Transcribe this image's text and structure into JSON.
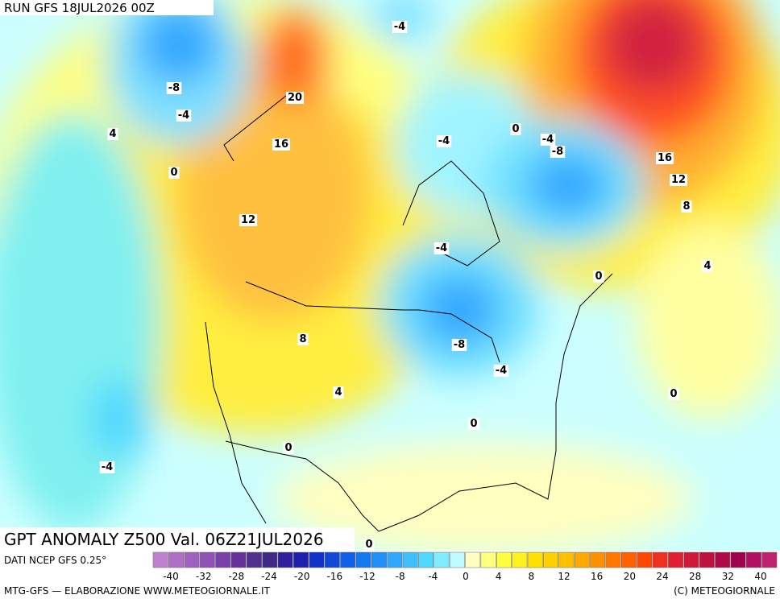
{
  "header": {
    "run": "RUN GFS 18JUL2026 00Z"
  },
  "title": "GPT ANOMALY Z500 Val. 06Z21JUL2026",
  "contour_labels": [
    -4,
    -8,
    -4,
    20,
    4,
    16,
    0,
    0,
    -4,
    -8,
    -4,
    16,
    12,
    8,
    12,
    -4,
    4,
    0,
    8,
    -8,
    -4,
    4,
    0,
    0,
    0,
    -4,
    0
  ],
  "legend": {
    "source": "DATI NCEP GFS 0.25°",
    "colors": [
      "#c080d0",
      "#b070c8",
      "#a060c0",
      "#9050b8",
      "#7840a8",
      "#683098",
      "#503090",
      "#402888",
      "#3020a0",
      "#2020b0",
      "#1030c8",
      "#1048d8",
      "#1060e8",
      "#1478f0",
      "#2090f8",
      "#30a8ff",
      "#40c0ff",
      "#50d8ff",
      "#80ecff",
      "#c0fcff",
      "#ffffc0",
      "#ffff80",
      "#ffff40",
      "#fff020",
      "#ffe000",
      "#ffd000",
      "#ffc000",
      "#ffa800",
      "#ff9000",
      "#ff7800",
      "#ff6000",
      "#ff4800",
      "#f03020",
      "#e02030",
      "#d01838",
      "#c01040",
      "#b00848",
      "#a00050",
      "#b01060",
      "#c02070"
    ],
    "ticks": [
      -40,
      -32,
      -28,
      -24,
      -20,
      -16,
      -12,
      -8,
      -4,
      0,
      4,
      8,
      12,
      16,
      20,
      24,
      28,
      32,
      40
    ]
  },
  "footer": {
    "left": "MTG-GFS — ELABORAZIONE WWW.METEOGIORNALE.IT",
    "right": "(C) METEOGIORNALE"
  }
}
